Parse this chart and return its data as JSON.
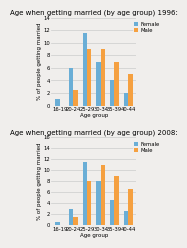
{
  "chart1": {
    "title": "Age when getting married (by age group) 1996:",
    "female": [
      1,
      6,
      11.5,
      7,
      4,
      2
    ],
    "male": [
      0,
      2.5,
      9,
      9,
      7,
      5
    ],
    "categories": [
      "16-19",
      "20-24",
      "25-29",
      "30-34",
      "35-39",
      "40-44"
    ],
    "ylim": [
      0,
      14
    ],
    "yticks": [
      0,
      2,
      4,
      6,
      8,
      10,
      12,
      14
    ]
  },
  "chart2": {
    "title": "Age when getting married (by age group) 2008:",
    "female": [
      0.5,
      3,
      11.5,
      8,
      4.5,
      2.5
    ],
    "male": [
      0,
      1.5,
      8,
      11,
      9,
      6.5
    ],
    "categories": [
      "16-19",
      "20-24",
      "25-29",
      "30-34",
      "35-39",
      "40-44"
    ],
    "ylim": [
      0,
      16
    ],
    "yticks": [
      0,
      2,
      4,
      6,
      8,
      10,
      12,
      14,
      16
    ]
  },
  "female_color": "#6aaed6",
  "male_color": "#f5a040",
  "ylabel": "% of people getting married",
  "xlabel": "Age group",
  "legend_labels": [
    "Female",
    "Male"
  ],
  "bar_width": 0.32,
  "bg_color": "#f0eeec",
  "plot_bg": "#f0eeec",
  "grid_color": "#cccccc",
  "title_fontsize": 5.0,
  "label_fontsize": 4.0,
  "tick_fontsize": 3.8,
  "legend_fontsize": 3.8
}
